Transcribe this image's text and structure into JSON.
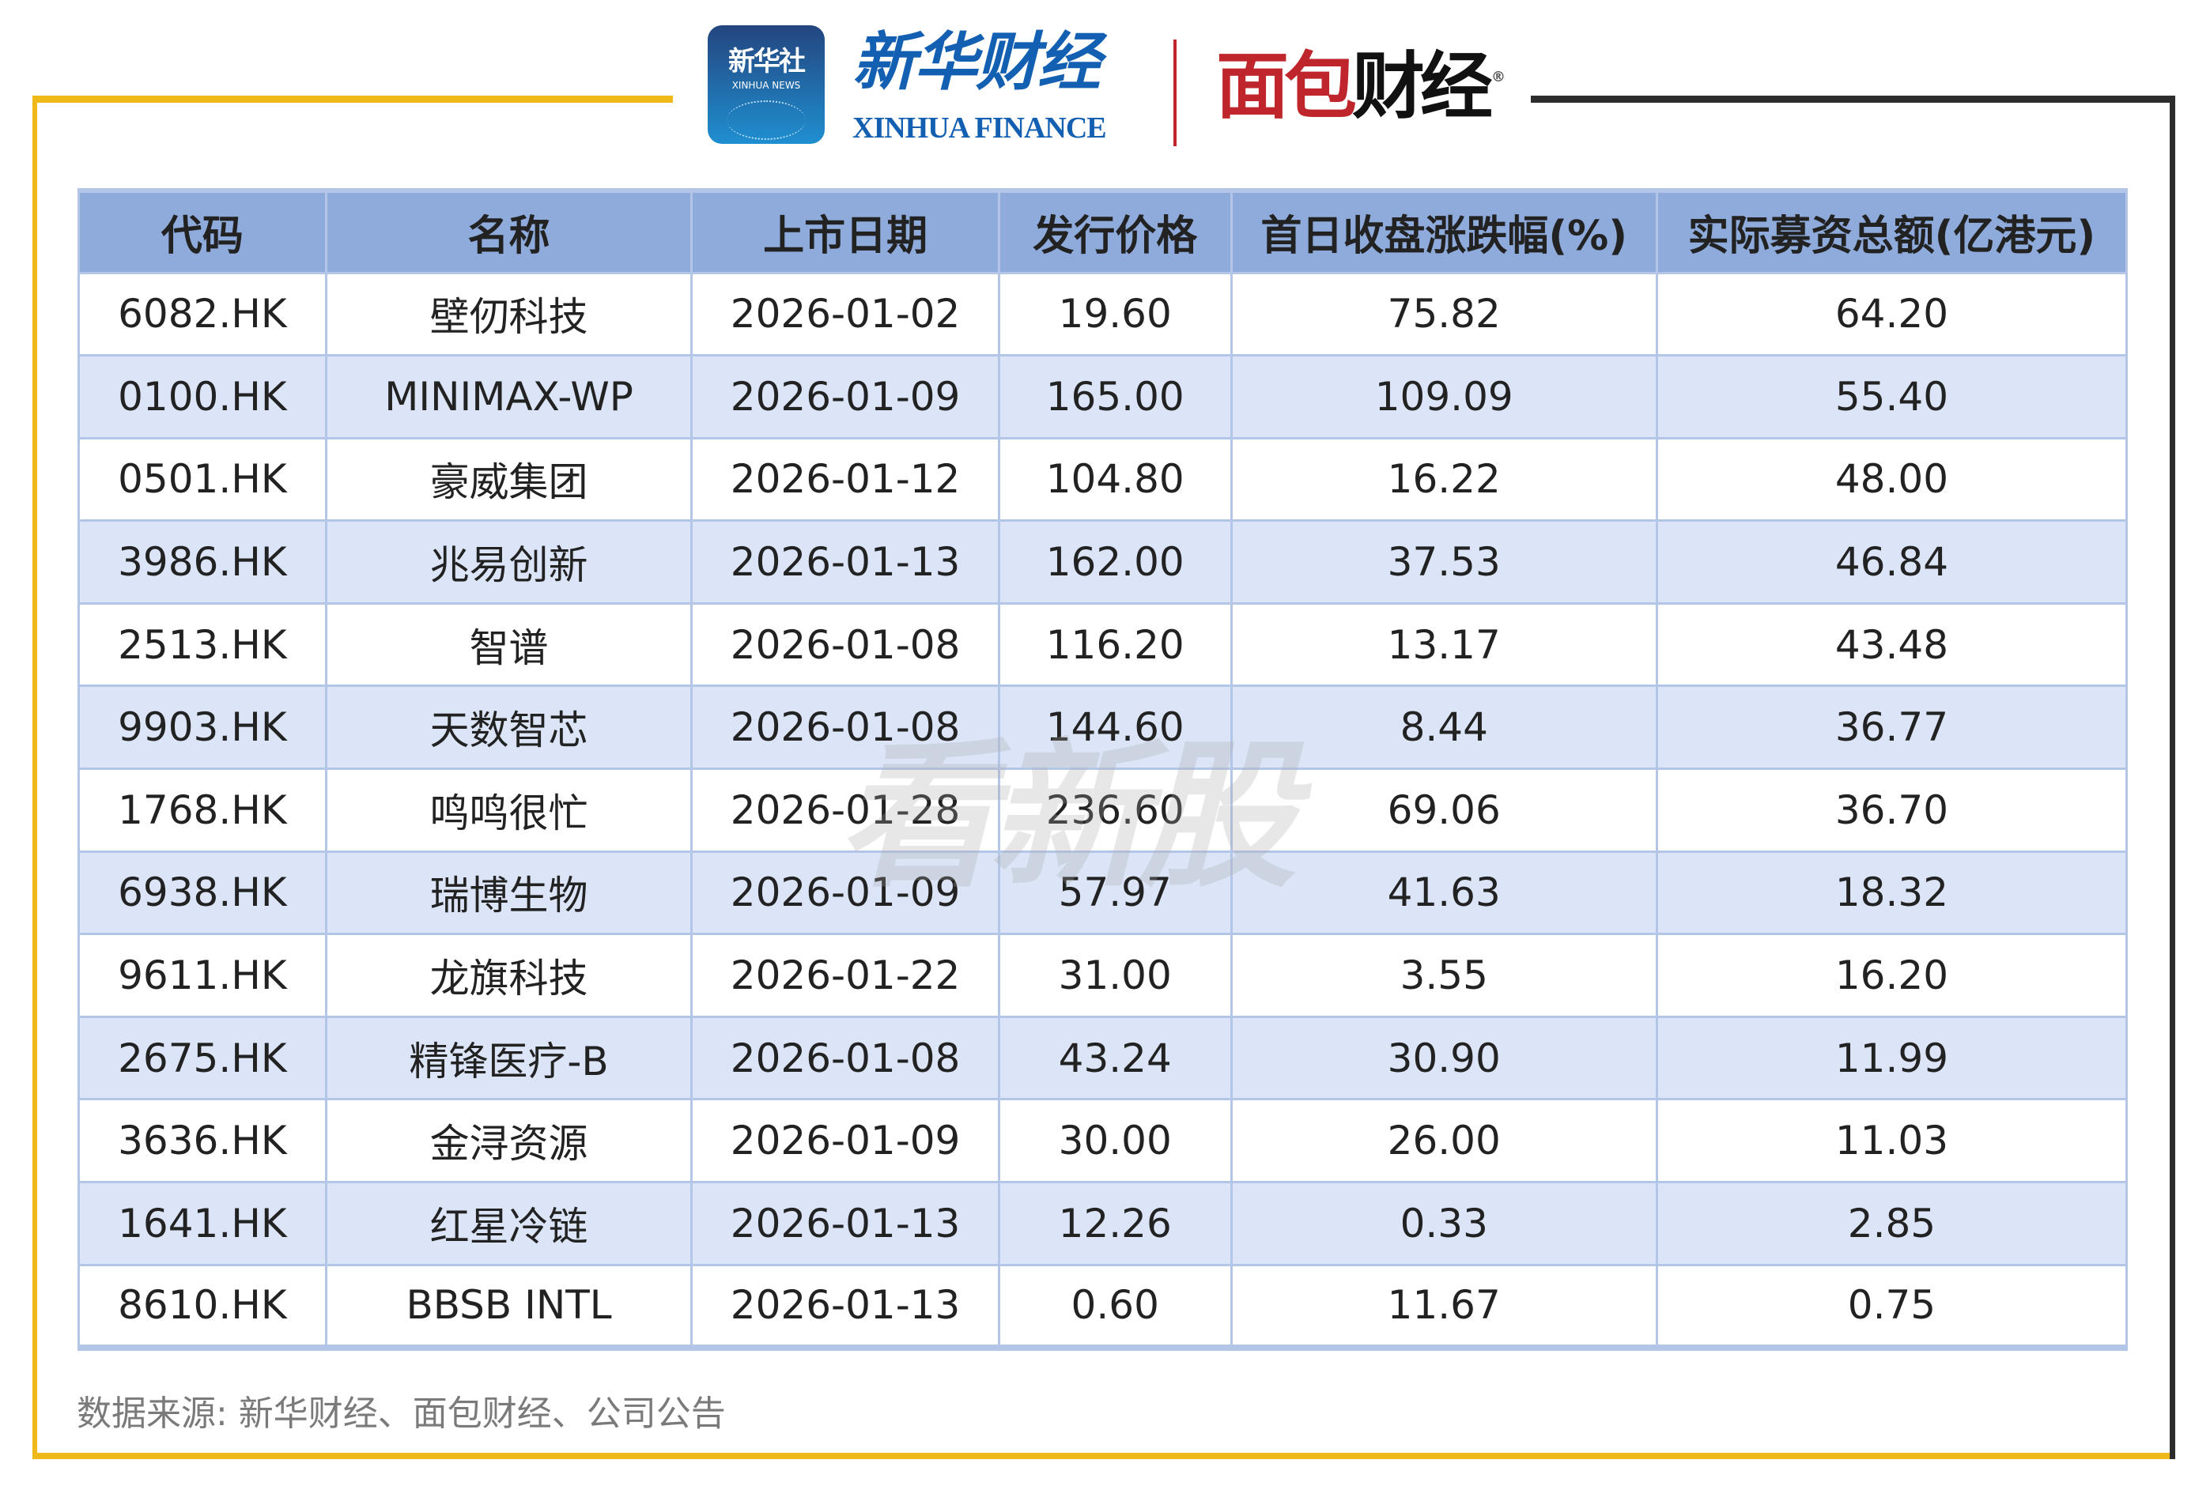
{
  "logos": {
    "xinhua_badge_cn": "新华社",
    "xinhua_badge_en": "XINHUA NEWS",
    "xinhua_finance_cn": "新华财经",
    "xinhua_finance_en": "XINHUA FINANCE",
    "mianbao_red": "面包",
    "mianbao_black": "财经",
    "registered_mark": "®"
  },
  "watermark": "看新股",
  "colors": {
    "header_bg": "#8eabdc",
    "alt_row_bg": "#dbe5f7",
    "border": "#b4c6e7",
    "frame_yellow": "#efb91a",
    "frame_dark": "#2d2d2d"
  },
  "table": {
    "headers": [
      "代码",
      "名称",
      "上市日期",
      "发行价格",
      "首日收盘涨跌幅(%)",
      "实际募资总额(亿港元)"
    ],
    "rows": [
      [
        "6082.HK",
        "壁仞科技",
        "2026-01-02",
        "19.60",
        "75.82",
        "64.20"
      ],
      [
        "0100.HK",
        "MINIMAX-WP",
        "2026-01-09",
        "165.00",
        "109.09",
        "55.40"
      ],
      [
        "0501.HK",
        "豪威集团",
        "2026-01-12",
        "104.80",
        "16.22",
        "48.00"
      ],
      [
        "3986.HK",
        "兆易创新",
        "2026-01-13",
        "162.00",
        "37.53",
        "46.84"
      ],
      [
        "2513.HK",
        "智谱",
        "2026-01-08",
        "116.20",
        "13.17",
        "43.48"
      ],
      [
        "9903.HK",
        "天数智芯",
        "2026-01-08",
        "144.60",
        "8.44",
        "36.77"
      ],
      [
        "1768.HK",
        "鸣鸣很忙",
        "2026-01-28",
        "236.60",
        "69.06",
        "36.70"
      ],
      [
        "6938.HK",
        "瑞博生物",
        "2026-01-09",
        "57.97",
        "41.63",
        "18.32"
      ],
      [
        "9611.HK",
        "龙旗科技",
        "2026-01-22",
        "31.00",
        "3.55",
        "16.20"
      ],
      [
        "2675.HK",
        "精锋医疗-B",
        "2026-01-08",
        "43.24",
        "30.90",
        "11.99"
      ],
      [
        "3636.HK",
        "金浔资源",
        "2026-01-09",
        "30.00",
        "26.00",
        "11.03"
      ],
      [
        "1641.HK",
        "红星冷链",
        "2026-01-13",
        "12.26",
        "0.33",
        "2.85"
      ],
      [
        "8610.HK",
        "BBSB INTL",
        "2026-01-13",
        "0.60",
        "11.67",
        "0.75"
      ]
    ]
  },
  "source": "数据来源: 新华财经、面包财经、公司公告"
}
